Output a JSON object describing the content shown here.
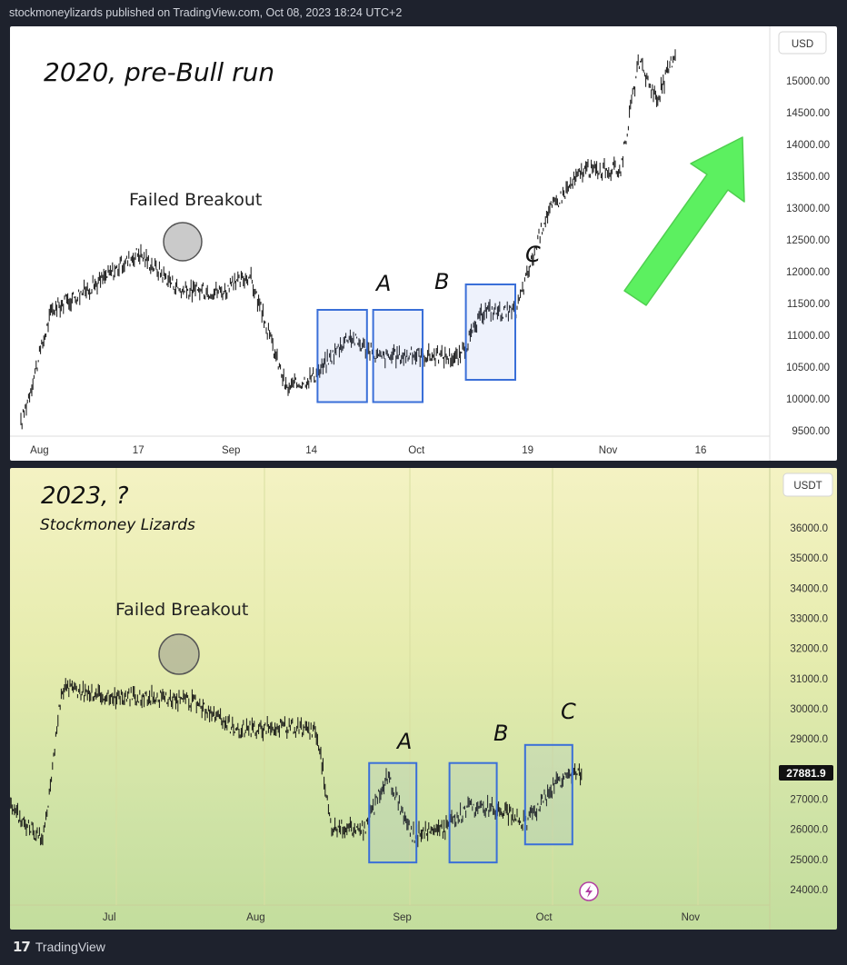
{
  "header": {
    "publish_line": "stockmoneylizards published on TradingView.com, Oct 08, 2023 18:24 UTC+2"
  },
  "footer": {
    "brand": "TradingView",
    "logo_glyph": "17"
  },
  "colors": {
    "box": "#3a6fd8",
    "arrow": "#5cf060",
    "candle": "#111111",
    "last_price_bg": "#111111"
  },
  "chart_data": [
    {
      "type": "line",
      "title": "2020, pre-Bull run",
      "currency": "USD",
      "y_ticks": [
        "15000.00",
        "14500.00",
        "14000.00",
        "13500.00",
        "13000.00",
        "12500.00",
        "12000.00",
        "11500.00",
        "11000.00",
        "10500.00",
        "10000.00",
        "9500.00"
      ],
      "ylim": [
        9300,
        15450
      ],
      "x_ticks": [
        "Aug",
        "17",
        "Sep",
        "14",
        "Oct",
        "19",
        "Nov",
        "16"
      ],
      "annotation": "Failed Breakout",
      "box_labels": [
        "A",
        "B",
        "C"
      ],
      "x": [
        "Jul 29",
        "Aug 3",
        "Aug 10",
        "Aug 17",
        "Aug 24",
        "Aug 31",
        "Sep 4",
        "Sep 10",
        "Sep 15",
        "Sep 20",
        "Sep 25",
        "Oct 1",
        "Oct 8",
        "Oct 12",
        "Oct 17",
        "Oct 22",
        "Oct 28",
        "Nov 3",
        "Nov 6",
        "Nov 9",
        "Nov 12"
      ],
      "values": [
        9600,
        11400,
        11800,
        12300,
        11700,
        11700,
        11950,
        10150,
        10400,
        11000,
        10650,
        10700,
        10650,
        11400,
        11350,
        12900,
        13600,
        13600,
        15300,
        14700,
        15500
      ],
      "boxes": [
        {
          "label": "A",
          "x0": "Sep 15",
          "x1": "Sep 23",
          "y0": 9950,
          "y1": 11400
        },
        {
          "label": "B",
          "x0": "Sep 24",
          "x1": "Oct 2",
          "y0": 9950,
          "y1": 11400
        },
        {
          "label": "C",
          "x0": "Oct 9",
          "x1": "Oct 17",
          "y0": 10300,
          "y1": 11800
        }
      ]
    },
    {
      "type": "line",
      "title": "2023, ?",
      "subtitle": "Stockmoney Lizards",
      "currency": "USDT",
      "y_ticks": [
        "36000.0",
        "35000.0",
        "34000.0",
        "33000.0",
        "32000.0",
        "31000.0",
        "30000.0",
        "29000.0",
        "28000.0",
        "27000.0",
        "26000.0",
        "25000.0",
        "24000.0"
      ],
      "ylim": [
        23650,
        36700
      ],
      "last_price": "27881.9",
      "x_ticks": [
        "Jul",
        "Aug",
        "Sep",
        "Oct",
        "Nov"
      ],
      "annotation": "Failed Breakout",
      "box_labels": [
        "A",
        "B",
        "C"
      ],
      "x": [
        "Jun 10",
        "Jun 17",
        "Jun 21",
        "Jul 1",
        "Jul 10",
        "Jul 19",
        "Jul 28",
        "Aug 8",
        "Aug 14",
        "Aug 17",
        "Aug 24",
        "Aug 29",
        "Sep 3",
        "Sep 10",
        "Sep 15",
        "Sep 22",
        "Sep 27",
        "Oct 1",
        "Oct 4",
        "Oct 9"
      ],
      "values": [
        26700,
        25600,
        30700,
        30400,
        30400,
        30200,
        29300,
        29400,
        29200,
        26100,
        26000,
        27800,
        25800,
        26000,
        26700,
        26700,
        26200,
        27000,
        27600,
        27900
      ],
      "boxes": [
        {
          "label": "A",
          "x0": "Aug 25",
          "x1": "Sep 4",
          "y0": 24900,
          "y1": 28200
        },
        {
          "label": "B",
          "x0": "Sep 11",
          "x1": "Sep 21",
          "y0": 24900,
          "y1": 28200
        },
        {
          "label": "C",
          "x0": "Sep 27",
          "x1": "Oct 7",
          "y0": 25500,
          "y1": 28800
        }
      ]
    }
  ]
}
